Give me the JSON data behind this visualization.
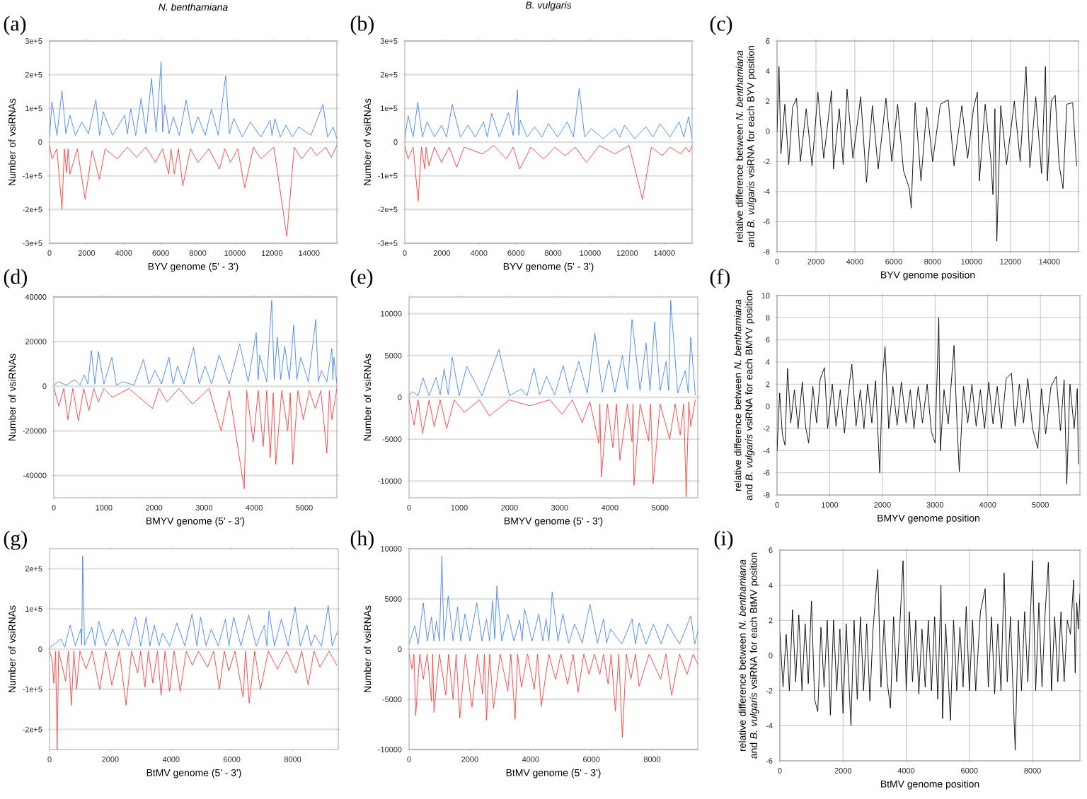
{
  "chart_data": [
    {
      "type": "line",
      "title": "N. benthamiana",
      "annotations": [
        "(a)"
      ],
      "xlabel": "BYV genome (5' - 3')",
      "ylabel": "Number of vsiRNAs",
      "xlim": [
        0,
        15500
      ],
      "xticks": [
        0,
        2000,
        4000,
        6000,
        8000,
        10000,
        12000,
        14000
      ],
      "ylim": [
        -300000,
        300000
      ],
      "yticks": [
        {
          "value": -300000,
          "label": "-3e+5"
        },
        {
          "value": -200000,
          "label": "-2e+5"
        },
        {
          "value": -100000,
          "label": "-1e+5"
        },
        0,
        {
          "value": 100000,
          "label": "1e+5"
        },
        {
          "value": 200000,
          "label": "2e+5"
        },
        {
          "value": 300000,
          "label": "3e+5"
        }
      ],
      "grid": "y",
      "series": [
        {
          "color": "#4285f4",
          "x": [
            0,
            130,
            400,
            670,
            880,
            1100,
            1400,
            1740,
            2100,
            2500,
            2700,
            2900,
            3400,
            4050,
            4200,
            4380,
            4650,
            4940,
            5200,
            5500,
            5750,
            6020,
            6100,
            6220,
            6450,
            6680,
            7000,
            7370,
            7700,
            8010,
            8400,
            8730,
            9100,
            9500,
            9700,
            9940,
            10400,
            10830,
            11400,
            11900,
            12000,
            12160,
            12450,
            12750,
            13100,
            13440,
            14100,
            14750,
            15000,
            15300,
            15500
          ],
          "values": [
            15000,
            120000,
            20000,
            153000,
            25000,
            80000,
            20000,
            60000,
            25000,
            125000,
            20000,
            90000,
            20000,
            80000,
            25000,
            100000,
            20000,
            130000,
            25000,
            188000,
            30000,
            238000,
            30000,
            110000,
            25000,
            75000,
            20000,
            125000,
            25000,
            75000,
            20000,
            98000,
            20000,
            197000,
            25000,
            70000,
            15000,
            60000,
            15000,
            65000,
            20000,
            70000,
            15000,
            50000,
            15000,
            45000,
            20000,
            112000,
            15000,
            45000,
            10000
          ]
        },
        {
          "color": "#ff3b3b",
          "x": [
            0,
            130,
            400,
            670,
            800,
            920,
            1000,
            1100,
            1500,
            1920,
            2300,
            2690,
            3000,
            3650,
            4200,
            4690,
            5200,
            5710,
            6100,
            6430,
            6550,
            6730,
            6950,
            7190,
            7600,
            8010,
            8600,
            9170,
            9450,
            9760,
            10150,
            10530,
            11000,
            11400,
            12100,
            12800,
            13200,
            13600,
            14100,
            14400,
            14900,
            15200,
            15500
          ],
          "values": [
            -10000,
            -50000,
            -20000,
            -200000,
            -20000,
            -90000,
            -20000,
            -95000,
            -20000,
            -170000,
            -25000,
            -110000,
            -20000,
            -50000,
            -15000,
            -45000,
            -15000,
            -60000,
            -20000,
            -95000,
            -20000,
            -95000,
            -20000,
            -130000,
            -20000,
            -60000,
            -20000,
            -80000,
            -20000,
            -60000,
            -20000,
            -135000,
            -15000,
            -50000,
            -15000,
            -280000,
            -15000,
            -50000,
            -15000,
            -40000,
            -15000,
            -45000,
            -10000
          ]
        }
      ]
    },
    {
      "type": "line",
      "title": "B. vulgaris",
      "annotations": [
        "(b)"
      ],
      "xlabel": "BYV genome (5' - 3')",
      "ylabel": "Number of vsiRNAs",
      "xlim": [
        0,
        15500
      ],
      "xticks": [
        0,
        2000,
        4000,
        6000,
        8000,
        10000,
        12000,
        14000
      ],
      "ylim": [
        -300000,
        300000
      ],
      "yticks": [
        {
          "value": -300000,
          "label": "-3e+5"
        },
        {
          "value": -200000,
          "label": "-2e+5"
        },
        {
          "value": -100000,
          "label": "-1e+5"
        },
        0,
        {
          "value": 100000,
          "label": "1e+5"
        },
        {
          "value": 200000,
          "label": "2e+5"
        },
        {
          "value": 300000,
          "label": "3e+5"
        }
      ],
      "grid": "y",
      "series": [
        {
          "color": "#4285f4",
          "x": [
            0,
            180,
            450,
            700,
            950,
            1200,
            1600,
            1980,
            2250,
            2560,
            3000,
            3400,
            3800,
            4250,
            4450,
            4690,
            5100,
            5590,
            5850,
            6080,
            6150,
            6230,
            6600,
            7000,
            7400,
            7750,
            8250,
            8770,
            9100,
            9410,
            9700,
            10060,
            10700,
            11330,
            11600,
            11850,
            12400,
            13000,
            13400,
            13770,
            14300,
            14800,
            15050,
            15310,
            15500
          ],
          "values": [
            10000,
            78000,
            15000,
            118000,
            15000,
            60000,
            15000,
            50000,
            15000,
            112000,
            15000,
            50000,
            15000,
            60000,
            15000,
            85000,
            15000,
            87000,
            20000,
            155000,
            20000,
            65000,
            15000,
            45000,
            15000,
            55000,
            15000,
            60000,
            15000,
            160000,
            15000,
            40000,
            10000,
            40000,
            15000,
            50000,
            10000,
            45000,
            15000,
            55000,
            15000,
            60000,
            15000,
            75000,
            10000
          ]
        },
        {
          "color": "#ff3b3b",
          "x": [
            0,
            180,
            450,
            720,
            900,
            1080,
            1150,
            1300,
            1600,
            1980,
            2400,
            2800,
            3200,
            4200,
            4800,
            5480,
            5850,
            6200,
            6800,
            7490,
            8100,
            8640,
            9200,
            9800,
            10500,
            11330,
            12100,
            12820,
            13300,
            13900,
            14300,
            14900,
            15150,
            15350,
            15500
          ],
          "values": [
            -10000,
            -50000,
            -15000,
            -175000,
            -15000,
            -80000,
            -15000,
            -70000,
            -15000,
            -60000,
            -15000,
            -75000,
            -15000,
            -35000,
            -10000,
            -50000,
            -15000,
            -80000,
            -15000,
            -50000,
            -15000,
            -40000,
            -15000,
            -60000,
            -10000,
            -35000,
            -10000,
            -170000,
            -15000,
            -40000,
            -15000,
            -35000,
            -15000,
            -30000,
            -10000
          ]
        }
      ]
    },
    {
      "type": "line",
      "annotations": [
        "(c)"
      ],
      "xlabel": "BYV genome position",
      "ylabel": "relative difference between *N. benthamiana* and *B. vulgaris* vsiRNA for each BYV position",
      "xlim": [
        0,
        15500
      ],
      "xticks": [
        0,
        2000,
        4000,
        6000,
        8000,
        10000,
        12000,
        14000
      ],
      "ylim": [
        -8,
        6
      ],
      "yticks": [
        -8,
        -6,
        -4,
        -2,
        0,
        2,
        4,
        6
      ],
      "grid": true,
      "series": [
        {
          "color": "#000000",
          "x": [
            0,
            100,
            200,
            400,
            600,
            800,
            1000,
            1200,
            1500,
            1800,
            2100,
            2400,
            2800,
            2900,
            3200,
            3400,
            3600,
            3900,
            4300,
            4600,
            4900,
            5200,
            5600,
            5900,
            6200,
            6500,
            6800,
            6900,
            7100,
            7400,
            7700,
            8000,
            8400,
            8800,
            9100,
            9500,
            9800,
            10100,
            10300,
            10400,
            10700,
            11000,
            11100,
            11200,
            11300,
            11500,
            11800,
            12200,
            12500,
            12800,
            13000,
            13300,
            13600,
            13800,
            13900,
            14100,
            14300,
            14500,
            14700,
            14900,
            15200,
            15400
          ],
          "values": [
            0,
            4.3,
            -1.5,
            1.8,
            -2.2,
            1.6,
            2.2,
            -2.0,
            1.5,
            -2.3,
            2.6,
            -1.8,
            2.7,
            -2.5,
            1.5,
            -2.2,
            2.8,
            -1.8,
            2.3,
            -3.4,
            1.7,
            -2.5,
            2.2,
            -2.0,
            1.8,
            -2.6,
            -3.8,
            -5.1,
            1.9,
            -3.3,
            1.6,
            -2.0,
            1.8,
            2.1,
            -2.3,
            1.7,
            -1.8,
            1.5,
            2.6,
            -3.3,
            1.8,
            -2.0,
            -4.2,
            1.5,
            -7.3,
            1.7,
            -2.2,
            2.0,
            -2.0,
            4.3,
            -2.4,
            2.3,
            -2.8,
            4.3,
            -3.3,
            2.0,
            2.4,
            -2.2,
            -3.8,
            1.8,
            1.9,
            -2.3
          ]
        }
      ]
    },
    {
      "type": "line",
      "annotations": [
        "(d)"
      ],
      "xlabel": "BMYV genome (5' - 3')",
      "ylabel": "Number of vsiRNAs",
      "xlim": [
        0,
        5650
      ],
      "xticks": [
        0,
        1000,
        2000,
        3000,
        4000,
        5000
      ],
      "ylim": [
        -50000,
        40000
      ],
      "yticks": [
        -40000,
        -20000,
        0,
        20000,
        40000
      ],
      "grid": "y",
      "series": [
        {
          "color": "#4285f4",
          "x": [
            0,
            90,
            250,
            420,
            520,
            610,
            680,
            750,
            820,
            890,
            1000,
            1160,
            1250,
            1380,
            1600,
            1790,
            1900,
            2020,
            2150,
            2300,
            2380,
            2470,
            2600,
            2790,
            2900,
            3020,
            3150,
            3300,
            3500,
            3710,
            3880,
            4040,
            4080,
            4110,
            4250,
            4350,
            4400,
            4460,
            4530,
            4610,
            4700,
            4790,
            4850,
            4930,
            5080,
            5230,
            5280,
            5340,
            5450,
            5550,
            5570,
            5590,
            5650
          ],
          "values": [
            500,
            2000,
            500,
            3000,
            500,
            5000,
            1000,
            16000,
            1000,
            15500,
            1000,
            13000,
            500,
            2000,
            500,
            12000,
            1000,
            7000,
            1000,
            13000,
            1000,
            9000,
            1000,
            17500,
            1000,
            9000,
            1000,
            14000,
            1000,
            19000,
            2000,
            24000,
            3000,
            14000,
            2000,
            38500,
            3000,
            22000,
            3000,
            18000,
            3000,
            27500,
            3000,
            13000,
            2000,
            30000,
            2000,
            7000,
            2000,
            17000,
            3000,
            13000,
            1000
          ]
        },
        {
          "color": "#ff3b3b",
          "x": [
            0,
            100,
            200,
            280,
            380,
            490,
            600,
            700,
            800,
            890,
            1000,
            1170,
            1500,
            1970,
            2100,
            2260,
            2500,
            2770,
            3100,
            3340,
            3500,
            3800,
            3850,
            3980,
            4080,
            4180,
            4250,
            4320,
            4380,
            4430,
            4550,
            4670,
            4720,
            4770,
            4870,
            4980,
            5100,
            5220,
            5330,
            5450,
            5500,
            5550,
            5650
          ],
          "values": [
            -500,
            -9000,
            -1000,
            -15000,
            -1000,
            -15500,
            -1000,
            -11000,
            -1000,
            -7000,
            -1000,
            -5000,
            -1000,
            -10000,
            -1000,
            -7000,
            -1000,
            -8000,
            -1000,
            -20000,
            -2000,
            -46000,
            -2000,
            -25000,
            -2000,
            -27000,
            -2000,
            -32000,
            -3000,
            -35000,
            -2000,
            -20000,
            -3000,
            -35000,
            -2000,
            -15000,
            -2000,
            -10000,
            -2000,
            -30000,
            -2000,
            -15000,
            -1000
          ]
        }
      ]
    },
    {
      "type": "line",
      "annotations": [
        "(e)"
      ],
      "xlabel": "BMYV genome (5' - 3')",
      "ylabel": "Number of vsiRNAs",
      "xlim": [
        0,
        5750
      ],
      "xticks": [
        0,
        1000,
        2000,
        3000,
        4000,
        5000
      ],
      "ylim": [
        -12000,
        12000
      ],
      "yticks": [
        -10000,
        -5000,
        0,
        5000,
        10000
      ],
      "grid": "y",
      "series": [
        {
          "color": "#4285f4",
          "x": [
            0,
            70,
            180,
            280,
            400,
            540,
            620,
            700,
            780,
            860,
            1000,
            1150,
            1450,
            1790,
            2000,
            2230,
            2350,
            2490,
            2600,
            2740,
            2900,
            3070,
            3200,
            3380,
            3550,
            3700,
            3850,
            3980,
            4100,
            4250,
            4350,
            4440,
            4600,
            4720,
            4800,
            4890,
            5000,
            5120,
            5170,
            5210,
            5350,
            5500,
            5560,
            5610,
            5700
          ],
          "values": [
            200,
            700,
            200,
            2300,
            200,
            2400,
            300,
            3400,
            300,
            4800,
            200,
            3700,
            200,
            5700,
            200,
            1000,
            200,
            3500,
            300,
            2500,
            300,
            3800,
            500,
            4300,
            500,
            7700,
            600,
            4500,
            600,
            5000,
            1000,
            9300,
            800,
            6500,
            800,
            9000,
            800,
            4300,
            800,
            11600,
            500,
            3200,
            500,
            7200,
            300
          ]
        },
        {
          "color": "#ff3b3b",
          "x": [
            0,
            100,
            180,
            270,
            400,
            500,
            620,
            750,
            900,
            1100,
            1400,
            1600,
            2000,
            2400,
            2800,
            3050,
            3250,
            3450,
            3600,
            3780,
            3800,
            3830,
            3950,
            4060,
            4130,
            4200,
            4350,
            4440,
            4460,
            4480,
            4600,
            4770,
            4810,
            4860,
            5000,
            5190,
            5300,
            5400,
            5470,
            5520,
            5570,
            5610,
            5700
          ],
          "values": [
            -200,
            -3300,
            -300,
            -4300,
            -300,
            -3500,
            -300,
            -3700,
            -300,
            -1800,
            -300,
            -2200,
            -300,
            -1000,
            -300,
            -2000,
            -300,
            -3000,
            -500,
            -5500,
            -800,
            -9500,
            -800,
            -6000,
            -800,
            -7500,
            -800,
            -5300,
            -800,
            -10500,
            -800,
            -5200,
            -800,
            -10300,
            -800,
            -5000,
            -800,
            -4500,
            -800,
            -11900,
            -500,
            -3500,
            -300
          ]
        }
      ]
    },
    {
      "type": "line",
      "annotations": [
        "(f)"
      ],
      "xlabel": "BMYV genome position",
      "ylabel": "relative difference between *N. benthamiana* and *B. vulgaris* vsiRNA for each BMYV position",
      "xlim": [
        0,
        5750
      ],
      "xticks": [
        0,
        1000,
        2000,
        3000,
        4000,
        5000
      ],
      "ylim": [
        -8,
        10
      ],
      "yticks": [
        -8,
        -6,
        -4,
        -2,
        0,
        2,
        4,
        6,
        8,
        10
      ],
      "grid": true,
      "series": [
        {
          "color": "#000000",
          "x": [
            0,
            50,
            100,
            150,
            200,
            260,
            330,
            400,
            480,
            540,
            600,
            680,
            750,
            820,
            900,
            960,
            1050,
            1120,
            1200,
            1280,
            1350,
            1420,
            1500,
            1580,
            1650,
            1720,
            1800,
            1870,
            1950,
            2000,
            2050,
            2120,
            2200,
            2280,
            2360,
            2450,
            2530,
            2600,
            2680,
            2760,
            2850,
            2930,
            3000,
            3070,
            3100,
            3170,
            3250,
            3360,
            3420,
            3460,
            3540,
            3620,
            3700,
            3780,
            3860,
            3940,
            4020,
            4100,
            4180,
            4260,
            4350,
            4450,
            4520,
            4600,
            4680,
            4760,
            4850,
            4950,
            5020,
            5100,
            5200,
            5300,
            5380,
            5450,
            5500,
            5560,
            5640,
            5700,
            5720
          ],
          "values": [
            -4.0,
            1.2,
            -2.5,
            -3.5,
            3.4,
            -1.5,
            1.5,
            -2.0,
            2.2,
            -1.8,
            -3.3,
            1.8,
            -1.5,
            2.5,
            3.5,
            -2.0,
            2.0,
            -1.8,
            1.5,
            -2.4,
            1.2,
            3.8,
            -1.8,
            1.5,
            -2.0,
            2.0,
            -1.5,
            2.3,
            -6.0,
            2.4,
            5.4,
            -2.0,
            1.8,
            -1.7,
            2.2,
            -1.5,
            1.5,
            -2.0,
            1.8,
            -1.5,
            2.0,
            -2.3,
            -3.3,
            8.0,
            -4.0,
            1.5,
            -1.6,
            5.5,
            -2.0,
            -5.9,
            1.8,
            -1.5,
            2.0,
            -1.8,
            1.5,
            -2.0,
            2.2,
            -1.6,
            1.8,
            -2.0,
            2.5,
            3.0,
            -1.8,
            2.0,
            -1.5,
            2.5,
            -2.0,
            -3.8,
            1.6,
            -2.5,
            1.8,
            2.7,
            -2.2,
            2.4,
            -7.0,
            2.0,
            -2.0,
            1.6,
            -5.2
          ]
        }
      ]
    },
    {
      "type": "line",
      "annotations": [
        "(g)"
      ],
      "xlabel": "BtMV genome (5' - 3')",
      "ylabel": "Number of vsiRNAs",
      "xlim": [
        0,
        9500
      ],
      "xticks": [
        0,
        2000,
        4000,
        6000,
        8000
      ],
      "ylim": [
        -250000,
        250000
      ],
      "yticks": [
        {
          "value": -200000,
          "label": "-2e+5"
        },
        {
          "value": -100000,
          "label": "-1e+5"
        },
        0,
        {
          "value": 100000,
          "label": "1e+5"
        },
        {
          "value": 200000,
          "label": "2e+5"
        }
      ],
      "grid": "y",
      "series": [
        {
          "color": "#4285f4",
          "x": [
            0,
            370,
            500,
            680,
            850,
            1030,
            1060,
            1090,
            1150,
            1390,
            1500,
            1620,
            1850,
            2090,
            2250,
            2400,
            2600,
            2830,
            3000,
            3180,
            3300,
            3450,
            3600,
            3720,
            3950,
            4190,
            4450,
            4690,
            4850,
            4970,
            5150,
            5320,
            5550,
            5790,
            5900,
            6060,
            6300,
            6550,
            6800,
            7070,
            7150,
            7220,
            7400,
            7630,
            7850,
            8080,
            8250,
            8470,
            8600,
            8730,
            8950,
            9170,
            9300,
            9480
          ],
          "values": [
            3000,
            25000,
            5000,
            60000,
            8000,
            50000,
            10000,
            232000,
            10000,
            55000,
            8000,
            70000,
            8000,
            50000,
            8000,
            50000,
            8000,
            80000,
            8000,
            80000,
            8000,
            60000,
            8000,
            40000,
            8000,
            65000,
            8000,
            88000,
            8000,
            80000,
            8000,
            50000,
            8000,
            75000,
            8000,
            80000,
            8000,
            85000,
            8000,
            60000,
            8000,
            95000,
            8000,
            75000,
            8000,
            105000,
            8000,
            60000,
            8000,
            35000,
            8000,
            108000,
            8000,
            45000
          ]
        },
        {
          "color": "#ff3b3b",
          "x": [
            0,
            90,
            140,
            200,
            250,
            300,
            530,
            620,
            720,
            800,
            890,
            1000,
            1200,
            1400,
            1650,
            1850,
            2050,
            2300,
            2520,
            2700,
            2900,
            3000,
            3140,
            3250,
            3400,
            3550,
            3670,
            3800,
            3950,
            4100,
            4300,
            4500,
            4700,
            4900,
            5200,
            5400,
            5590,
            5750,
            5900,
            6100,
            6370,
            6450,
            6570,
            6750,
            6940,
            7200,
            7500,
            7800,
            8110,
            8300,
            8510,
            8700,
            8900,
            9200,
            9450
          ],
          "values": [
            -5000,
            -30000,
            -85000,
            -5000,
            -250000,
            -5000,
            -80000,
            -5000,
            -140000,
            -5000,
            -100000,
            -5000,
            -50000,
            -5000,
            -100000,
            -5000,
            -90000,
            -5000,
            -140000,
            -5000,
            -60000,
            -5000,
            -95000,
            -5000,
            -85000,
            -5000,
            -115000,
            -5000,
            -105000,
            -5000,
            -105000,
            -5000,
            -40000,
            -5000,
            -45000,
            -5000,
            -100000,
            -5000,
            -55000,
            -5000,
            -120000,
            -5000,
            -135000,
            -5000,
            -100000,
            -5000,
            -50000,
            -5000,
            -60000,
            -5000,
            -90000,
            -5000,
            -45000,
            -5000,
            -40000
          ]
        }
      ]
    },
    {
      "type": "line",
      "annotations": [
        "(h)"
      ],
      "xlabel": "BtMV genome (5' - 3')",
      "ylabel": "Number of vsiRNAs",
      "xlim": [
        0,
        9500
      ],
      "xticks": [
        0,
        2000,
        4000,
        6000,
        8000
      ],
      "ylim": [
        -10000,
        10000
      ],
      "yticks": [
        -10000,
        -5000,
        0,
        5000,
        10000
      ],
      "grid": "y",
      "series": [
        {
          "color": "#4285f4",
          "x": [
            0,
            190,
            300,
            470,
            600,
            740,
            820,
            900,
            1000,
            1080,
            1150,
            1290,
            1450,
            1600,
            1700,
            1840,
            2000,
            2230,
            2400,
            2550,
            2650,
            2750,
            2820,
            2890,
            3050,
            3250,
            3450,
            3640,
            3720,
            3800,
            4050,
            4270,
            4400,
            4510,
            4600,
            4710,
            4900,
            5060,
            5250,
            5450,
            5700,
            5950,
            6200,
            6400,
            6500,
            6630,
            7000,
            7340,
            7450,
            7570,
            7800,
            8040,
            8300,
            8510,
            8900,
            9270,
            9400,
            9500
          ],
          "values": [
            500,
            2300,
            500,
            4600,
            800,
            3200,
            800,
            2800,
            800,
            9300,
            800,
            5300,
            800,
            4200,
            800,
            3500,
            800,
            4600,
            800,
            3000,
            800,
            4800,
            1000,
            6300,
            800,
            3500,
            800,
            2900,
            800,
            4000,
            800,
            3500,
            800,
            3000,
            800,
            5700,
            800,
            3500,
            600,
            2500,
            600,
            4500,
            600,
            3000,
            600,
            2000,
            500,
            3000,
            500,
            2600,
            500,
            2500,
            500,
            2500,
            500,
            3300,
            500,
            1800
          ]
        },
        {
          "color": "#ff3b3b",
          "x": [
            0,
            100,
            160,
            220,
            350,
            470,
            600,
            740,
            780,
            820,
            1000,
            1210,
            1300,
            1450,
            1550,
            1670,
            1850,
            2070,
            2250,
            2420,
            2480,
            2550,
            2650,
            2780,
            3000,
            3250,
            3350,
            3490,
            3570,
            3700,
            3900,
            4120,
            4230,
            4350,
            4600,
            4820,
            5000,
            5220,
            5400,
            5560,
            5750,
            5920,
            6100,
            6280,
            6400,
            6550,
            6650,
            6790,
            6900,
            7020,
            7150,
            7300,
            7450,
            7570,
            7900,
            8280,
            8450,
            8640,
            8900,
            9150,
            9350,
            9500
          ],
          "values": [
            -500,
            -2000,
            -500,
            -6600,
            -500,
            -3000,
            -500,
            -5200,
            -500,
            -6300,
            -500,
            -4600,
            -500,
            -5000,
            -500,
            -6900,
            -500,
            -5800,
            -500,
            -4500,
            -500,
            -7100,
            -500,
            -5900,
            -500,
            -4200,
            -500,
            -7000,
            -500,
            -3800,
            -500,
            -4000,
            -500,
            -5700,
            -500,
            -3000,
            -500,
            -3500,
            -500,
            -4300,
            -500,
            -2500,
            -500,
            -2500,
            -500,
            -3500,
            -500,
            -6200,
            -500,
            -8800,
            -500,
            -3000,
            -500,
            -3700,
            -500,
            -3000,
            -500,
            -4600,
            -500,
            -2500,
            -500,
            -1500
          ]
        }
      ]
    },
    {
      "type": "line",
      "annotations": [
        "(i)"
      ],
      "xlabel": "BtMV genome position",
      "ylabel": "relative difference between *N. benthamiana* and *B. vulgaris* vsiRNA for each BtMV position",
      "xlim": [
        0,
        9500
      ],
      "xticks": [
        0,
        2000,
        4000,
        6000,
        8000
      ],
      "ylim": [
        -6,
        6
      ],
      "yticks": [
        -6,
        -4,
        -2,
        0,
        2,
        4,
        6
      ],
      "grid": true,
      "series": [
        {
          "color": "#000000",
          "x": [
            0,
            100,
            200,
            300,
            400,
            500,
            600,
            700,
            800,
            900,
            1000,
            1100,
            1200,
            1300,
            1400,
            1500,
            1600,
            1700,
            1800,
            1900,
            2000,
            2100,
            2250,
            2350,
            2450,
            2550,
            2650,
            2750,
            2850,
            2950,
            3100,
            3200,
            3300,
            3400,
            3500,
            3600,
            3700,
            3800,
            3900,
            4000,
            4100,
            4200,
            4300,
            4400,
            4500,
            4600,
            4700,
            4800,
            4900,
            5000,
            5100,
            5150,
            5250,
            5400,
            5500,
            5600,
            5700,
            5800,
            5900,
            6000,
            6100,
            6200,
            6350,
            6500,
            6600,
            6700,
            6800,
            6900,
            7000,
            7100,
            7200,
            7300,
            7450,
            7550,
            7650,
            7750,
            7850,
            8000,
            8100,
            8200,
            8300,
            8400,
            8500,
            8600,
            8700,
            8800,
            8900,
            9000,
            9100,
            9200,
            9300,
            9350,
            9400,
            9450,
            9500
          ],
          "values": [
            1.3,
            -1.8,
            1.2,
            -2.0,
            2.6,
            -1.5,
            2.3,
            -2.0,
            1.8,
            -1.6,
            3.1,
            -2.5,
            -3.2,
            1.6,
            -1.8,
            2.0,
            -3.4,
            2.0,
            -2.0,
            1.5,
            -3.3,
            1.8,
            -4.0,
            2.0,
            -2.5,
            2.2,
            -2.0,
            1.8,
            -2.6,
            1.5,
            4.9,
            -1.8,
            2.0,
            -1.5,
            -3.0,
            2.2,
            -1.5,
            1.8,
            5.4,
            -2.0,
            2.5,
            -1.5,
            2.0,
            -2.2,
            1.5,
            -1.8,
            2.0,
            -2.0,
            2.2,
            -2.5,
            4.0,
            -3.6,
            1.8,
            -3.7,
            2.0,
            -2.0,
            1.6,
            -1.8,
            2.8,
            -2.0,
            2.0,
            -2.0,
            2.5,
            3.8,
            -1.8,
            2.2,
            -2.2,
            1.8,
            -2.0,
            4.7,
            -1.5,
            2.2,
            -5.4,
            2.0,
            -2.0,
            2.5,
            -1.5,
            5.4,
            -2.0,
            3.0,
            -1.8,
            2.5,
            5.3,
            -2.0,
            2.2,
            -1.5,
            2.5,
            -1.5,
            2.0,
            1.2,
            4.3,
            -1.0,
            3.0,
            1.5,
            3.5
          ]
        }
      ]
    }
  ]
}
